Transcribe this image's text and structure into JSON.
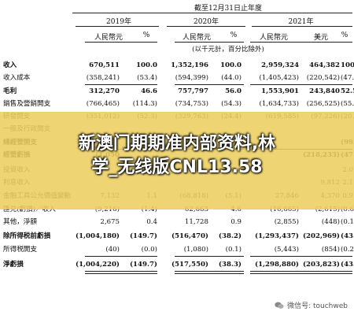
{
  "header": {
    "period": "截至12月31日止年度",
    "years": [
      "2019年",
      "2020年",
      "2021年"
    ],
    "cols": [
      "人民幣元",
      "%",
      "人民幣元",
      "%",
      "人民幣元",
      "美元",
      "%"
    ],
    "unit_note": "(以千元計，百分比除外)"
  },
  "rows": [
    {
      "label": "收入",
      "bold": true,
      "v": [
        "670,511",
        "100.0",
        "1,352,196",
        "100.0",
        "2,959,324",
        "464,382",
        "100.0"
      ]
    },
    {
      "label": "收入成本",
      "bold": false,
      "v": [
        "(358,241)",
        "(53.4)",
        "(594,399)",
        "(44.0)",
        "(1,405,423)",
        "(220,542)",
        "(47.5)"
      ]
    },
    {
      "label": "毛利",
      "bold": true,
      "v": [
        "312,270",
        "46.6",
        "757,797",
        "56.0",
        "1,553,901",
        "243,840",
        "52.5"
      ]
    },
    {
      "label": "銷售及營銷開支",
      "bold": false,
      "v": [
        "(766,465)",
        "(114.3)",
        "(734,753)",
        "(54.3)",
        "(1,634,733)",
        "(256,525)",
        "(55.2)"
      ]
    },
    {
      "label": "研發開支",
      "bold": false,
      "v": [
        "(351,012)",
        "(52.3)",
        "(329,763)",
        "(24.4)",
        "(619,585)",
        "(97,226)",
        "(20.9)"
      ]
    },
    {
      "label": "一般及行政開支",
      "bold": false,
      "v": [
        "",
        "",
        "",
        "",
        "",
        "",
        ""
      ]
    },
    {
      "label": "總經營開支",
      "bold": true,
      "v": [
        "",
        "",
        "",
        "",
        "",
        "",
        "(99.5)"
      ]
    },
    {
      "label": "經營虧損",
      "bold": true,
      "v": [
        "(1,050",
        "",
        "",
        "",
        "",
        "(218,233)",
        "(47.0)"
      ]
    },
    {
      "label": "投資收入",
      "bold": false,
      "v": [
        "",
        "",
        "",
        "",
        "",
        "",
        "2.0"
      ]
    },
    {
      "label": "利息收入",
      "bold": false,
      "v": [
        "",
        "",
        "",
        "",
        "",
        "9,812",
        "2.1"
      ]
    },
    {
      "label": "金融工具公允價值變動",
      "bold": false,
      "v": [
        "7,132",
        "1.1",
        "(68,818)",
        "(5.1)",
        "27,846",
        "4,370",
        "0.9"
      ]
    },
    {
      "label": "匯兑(虧損)／收入",
      "bold": false,
      "v": [
        "(9,216)",
        "(1.4)",
        "62,663",
        "4.6",
        "(16,665)",
        "(2,615)",
        "(0.6)"
      ]
    },
    {
      "label": "其他，淨額",
      "bold": false,
      "v": [
        "2,675",
        "0.4",
        "11,728",
        "0.9",
        "(2,855)",
        "(448)",
        "(0.1)"
      ]
    },
    {
      "label": "除所得税前虧損",
      "bold": true,
      "v": [
        "(1,004,180)",
        "(149.7)",
        "(516,470)",
        "(38.2)",
        "(1,293,437)",
        "(202,969)",
        "(43.7)"
      ]
    },
    {
      "label": "所得税開支",
      "bold": false,
      "v": [
        "(40)",
        "(0.0)",
        "(1,080)",
        "(0.1)",
        "(5,443)",
        "(854)",
        "(0.2)"
      ]
    },
    {
      "label": "淨虧損",
      "bold": true,
      "v": [
        "(1,004,220)",
        "(149.7)",
        "(517,550)",
        "(38.3)",
        "(1,298,880)",
        "(203,823)",
        "(43.9)"
      ]
    }
  ],
  "overlay_text": [
    "新澳门期期准内部资料,林",
    "学_无线版CNL13.58"
  ],
  "watermark": "微信号: touchweb",
  "colors": {
    "banner": "#ECCE60",
    "text": "#111111"
  }
}
